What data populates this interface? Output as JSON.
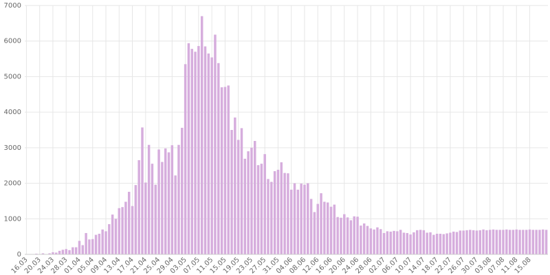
{
  "chart_data": {
    "type": "bar",
    "color": "#d6addd",
    "grid": true,
    "ylim": [
      0,
      7000
    ],
    "yticks": [
      0,
      1000,
      2000,
      3000,
      4000,
      5000,
      6000,
      7000
    ],
    "categories": [
      "16.03",
      null,
      null,
      null,
      "20.03",
      null,
      null,
      null,
      "24.03",
      null,
      null,
      null,
      "28.03",
      null,
      null,
      null,
      "01.04",
      null,
      null,
      null,
      "05.04",
      null,
      null,
      null,
      "09.04",
      null,
      null,
      null,
      "13.04",
      null,
      null,
      null,
      "17.04",
      null,
      null,
      null,
      "21.04",
      null,
      null,
      null,
      "25.04",
      null,
      null,
      null,
      "29.04",
      null,
      null,
      null,
      "03.05",
      null,
      null,
      null,
      "07.05",
      null,
      null,
      null,
      "11.05",
      null,
      null,
      null,
      "15.05",
      null,
      null,
      null,
      "19.05",
      null,
      null,
      null,
      "23.05",
      null,
      null,
      null,
      "27.05",
      null,
      null,
      null,
      "31.05",
      null,
      null,
      null,
      "04.06",
      null,
      null,
      null,
      "08.06",
      null,
      null,
      null,
      "12.06",
      null,
      null,
      null,
      "16.06",
      null,
      null,
      null,
      "20.06",
      null,
      null,
      null,
      "24.06",
      null,
      null,
      null,
      "28.06",
      null,
      null,
      null,
      "02.07",
      null,
      null,
      null,
      "06.07",
      null,
      null,
      null,
      "10.07",
      null,
      null,
      null,
      "14.07",
      null,
      null,
      null,
      "18.07",
      null,
      null,
      null,
      "22.07",
      null,
      null,
      null,
      "26.07",
      null,
      null,
      null,
      "30.07",
      null,
      null,
      null,
      "03.08",
      null,
      null,
      null,
      "07.08",
      null,
      null,
      null,
      "11.08",
      null,
      null,
      null,
      "15.08",
      null,
      null,
      null,
      null,
      null
    ],
    "values": [
      0,
      10,
      0,
      20,
      0,
      30,
      0,
      30,
      60,
      50,
      100,
      130,
      150,
      120,
      200,
      200,
      380,
      260,
      600,
      420,
      430,
      550,
      580,
      700,
      650,
      850,
      1120,
      1000,
      1300,
      1330,
      1480,
      1760,
      1360,
      1950,
      2650,
      3570,
      2020,
      3080,
      2550,
      1960,
      2950,
      2600,
      2980,
      2870,
      3070,
      2220,
      3080,
      3560,
      5350,
      5940,
      5780,
      5700,
      5860,
      6700,
      5850,
      5650,
      5540,
      6180,
      5380,
      4700,
      4710,
      4750,
      3500,
      3850,
      3220,
      3550,
      2690,
      2900,
      3000,
      3190,
      2510,
      2550,
      2820,
      2120,
      2040,
      2340,
      2380,
      2590,
      2290,
      2280,
      1820,
      2000,
      1820,
      1990,
      1960,
      2000,
      1560,
      1190,
      1420,
      1720,
      1480,
      1460,
      1340,
      1400,
      1050,
      1030,
      1130,
      1040,
      960,
      1070,
      1060,
      810,
      870,
      800,
      730,
      700,
      760,
      710,
      600,
      650,
      640,
      660,
      650,
      690,
      610,
      600,
      560,
      620,
      680,
      690,
      680,
      610,
      620,
      550,
      580,
      580,
      570,
      590,
      610,
      640,
      630,
      670,
      670,
      680,
      690,
      680,
      670,
      680,
      700,
      680,
      690,
      700,
      690,
      690,
      690,
      700,
      690,
      690,
      700,
      690,
      690,
      690,
      700,
      690,
      690,
      690,
      700,
      690
    ]
  }
}
